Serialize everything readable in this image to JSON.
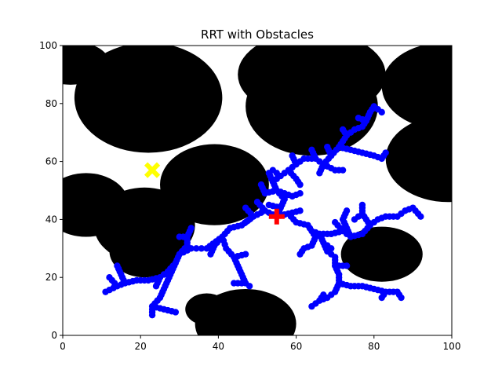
{
  "chart_data": {
    "type": "scatter",
    "title": "RRT with Obstacles",
    "xlabel": "",
    "ylabel": "",
    "xlim": [
      0,
      100
    ],
    "ylim": [
      0,
      100
    ],
    "xticks": [
      "0",
      "20",
      "40",
      "60",
      "80",
      "100"
    ],
    "yticks": [
      "0",
      "20",
      "40",
      "60",
      "80",
      "100"
    ],
    "grid": false,
    "legend": "none",
    "colors": {
      "obstacle": "#000000",
      "tree": "#0000ff",
      "start": "#ff0000",
      "goal": "#ffff00",
      "frame": "#000000"
    },
    "start": {
      "x": 55,
      "y": 41
    },
    "goal": {
      "x": 23,
      "y": 57
    },
    "obstacles": [
      {
        "cx": 2,
        "cy": 94,
        "rx": 10,
        "ry": 7.5
      },
      {
        "cx": 22,
        "cy": 82,
        "rx": 19,
        "ry": 19
      },
      {
        "cx": 64,
        "cy": 79,
        "rx": 17,
        "ry": 17
      },
      {
        "cx": 64,
        "cy": 90,
        "rx": 19,
        "ry": 15
      },
      {
        "cx": 98,
        "cy": 86,
        "rx": 16,
        "ry": 15
      },
      {
        "cx": 99,
        "cy": 61,
        "rx": 16,
        "ry": 15
      },
      {
        "cx": 39,
        "cy": 52,
        "rx": 14,
        "ry": 14
      },
      {
        "cx": 6,
        "cy": 45,
        "rx": 11,
        "ry": 11
      },
      {
        "cx": 21,
        "cy": 38,
        "rx": 13,
        "ry": 13
      },
      {
        "cx": 21,
        "cy": 29,
        "rx": 9,
        "ry": 9
      },
      {
        "cx": 82,
        "cy": 28,
        "rx": 10.5,
        "ry": 9.5
      },
      {
        "cx": 37,
        "cy": 9,
        "rx": 5.5,
        "ry": 5.5
      },
      {
        "cx": 47,
        "cy": 4,
        "rx": 13,
        "ry": 12
      }
    ],
    "tree_edges": [
      [
        [
          55,
          41
        ],
        [
          52,
          43
        ]
      ],
      [
        [
          52,
          43
        ],
        [
          49,
          41
        ]
      ],
      [
        [
          49,
          41
        ],
        [
          46,
          38
        ]
      ],
      [
        [
          46,
          38
        ],
        [
          43,
          37
        ]
      ],
      [
        [
          43,
          37
        ],
        [
          41,
          34
        ]
      ],
      [
        [
          41,
          34
        ],
        [
          37,
          30
        ]
      ],
      [
        [
          37,
          30
        ],
        [
          33,
          30
        ]
      ],
      [
        [
          33,
          30
        ],
        [
          30,
          28
        ]
      ],
      [
        [
          30,
          28
        ],
        [
          29,
          25
        ]
      ],
      [
        [
          29,
          25
        ],
        [
          27,
          22
        ]
      ],
      [
        [
          27,
          22
        ],
        [
          25,
          20
        ]
      ],
      [
        [
          25,
          20
        ],
        [
          22,
          19
        ]
      ],
      [
        [
          22,
          19
        ],
        [
          19,
          19
        ]
      ],
      [
        [
          19,
          19
        ],
        [
          16,
          18
        ]
      ],
      [
        [
          16,
          18
        ],
        [
          14,
          17
        ]
      ],
      [
        [
          16,
          18
        ],
        [
          15,
          21
        ]
      ],
      [
        [
          15,
          21
        ],
        [
          14,
          24
        ]
      ],
      [
        [
          14,
          17
        ],
        [
          12,
          20
        ]
      ],
      [
        [
          14,
          17
        ],
        [
          11,
          15
        ]
      ],
      [
        [
          25,
          20
        ],
        [
          24,
          17
        ]
      ],
      [
        [
          30,
          28
        ],
        [
          32,
          31
        ]
      ],
      [
        [
          32,
          31
        ],
        [
          32,
          34
        ]
      ],
      [
        [
          32,
          34
        ],
        [
          30,
          34
        ]
      ],
      [
        [
          32,
          34
        ],
        [
          33,
          37
        ]
      ],
      [
        [
          29,
          25
        ],
        [
          28,
          22
        ]
      ],
      [
        [
          28,
          22
        ],
        [
          27,
          19
        ]
      ],
      [
        [
          27,
          19
        ],
        [
          26,
          16
        ]
      ],
      [
        [
          26,
          16
        ],
        [
          25,
          13
        ]
      ],
      [
        [
          25,
          13
        ],
        [
          23,
          10
        ]
      ],
      [
        [
          23,
          10
        ],
        [
          23,
          7
        ]
      ],
      [
        [
          23,
          10
        ],
        [
          26,
          9
        ]
      ],
      [
        [
          26,
          9
        ],
        [
          29,
          8
        ]
      ],
      [
        [
          41,
          34
        ],
        [
          42,
          30
        ]
      ],
      [
        [
          42,
          30
        ],
        [
          44,
          27
        ]
      ],
      [
        [
          44,
          27
        ],
        [
          45,
          24
        ]
      ],
      [
        [
          45,
          24
        ],
        [
          46,
          21
        ]
      ],
      [
        [
          46,
          21
        ],
        [
          47,
          18
        ]
      ],
      [
        [
          47,
          18
        ],
        [
          48,
          17
        ]
      ],
      [
        [
          47,
          18
        ],
        [
          44,
          18
        ]
      ],
      [
        [
          44,
          27
        ],
        [
          47,
          28
        ]
      ],
      [
        [
          41,
          34
        ],
        [
          39,
          31
        ]
      ],
      [
        [
          39,
          31
        ],
        [
          38,
          28
        ]
      ],
      [
        [
          46,
          38
        ],
        [
          48,
          40
        ]
      ],
      [
        [
          55,
          41
        ],
        [
          58,
          42
        ]
      ],
      [
        [
          58,
          42
        ],
        [
          61,
          43
        ]
      ],
      [
        [
          55,
          41
        ],
        [
          56,
          44
        ]
      ],
      [
        [
          56,
          44
        ],
        [
          57,
          47
        ]
      ],
      [
        [
          57,
          47
        ],
        [
          55,
          50
        ]
      ],
      [
        [
          55,
          50
        ],
        [
          54,
          53
        ]
      ],
      [
        [
          54,
          53
        ],
        [
          56,
          55
        ]
      ],
      [
        [
          56,
          55
        ],
        [
          58,
          57
        ]
      ],
      [
        [
          58,
          57
        ],
        [
          60,
          59
        ]
      ],
      [
        [
          60,
          59
        ],
        [
          62,
          61
        ]
      ],
      [
        [
          62,
          61
        ],
        [
          65,
          61
        ]
      ],
      [
        [
          65,
          61
        ],
        [
          67,
          59
        ]
      ],
      [
        [
          67,
          59
        ],
        [
          70,
          57
        ]
      ],
      [
        [
          70,
          57
        ],
        [
          72,
          57
        ]
      ],
      [
        [
          67,
          59
        ],
        [
          69,
          62
        ]
      ],
      [
        [
          69,
          62
        ],
        [
          71,
          65
        ]
      ],
      [
        [
          71,
          65
        ],
        [
          72,
          67
        ]
      ],
      [
        [
          72,
          67
        ],
        [
          73,
          69
        ]
      ],
      [
        [
          73,
          69
        ],
        [
          75,
          71
        ]
      ],
      [
        [
          75,
          71
        ],
        [
          77,
          72
        ]
      ],
      [
        [
          77,
          72
        ],
        [
          78,
          74
        ]
      ],
      [
        [
          78,
          74
        ],
        [
          79,
          77
        ]
      ],
      [
        [
          79,
          77
        ],
        [
          80,
          79
        ]
      ],
      [
        [
          80,
          79
        ],
        [
          82,
          77
        ]
      ],
      [
        [
          78,
          74
        ],
        [
          76,
          75
        ]
      ],
      [
        [
          73,
          69
        ],
        [
          72,
          71
        ]
      ],
      [
        [
          71,
          65
        ],
        [
          74,
          64
        ]
      ],
      [
        [
          74,
          64
        ],
        [
          77,
          63
        ]
      ],
      [
        [
          77,
          63
        ],
        [
          80,
          62
        ]
      ],
      [
        [
          80,
          62
        ],
        [
          82,
          61
        ]
      ],
      [
        [
          82,
          61
        ],
        [
          83,
          63
        ]
      ],
      [
        [
          69,
          62
        ],
        [
          68,
          65
        ]
      ],
      [
        [
          67,
          59
        ],
        [
          66,
          56
        ]
      ],
      [
        [
          65,
          61
        ],
        [
          64,
          64
        ]
      ],
      [
        [
          60,
          59
        ],
        [
          59,
          62
        ]
      ],
      [
        [
          56,
          55
        ],
        [
          54,
          57
        ]
      ],
      [
        [
          55,
          50
        ],
        [
          52,
          49
        ]
      ],
      [
        [
          52,
          49
        ],
        [
          51,
          52
        ]
      ],
      [
        [
          54,
          53
        ],
        [
          53,
          56
        ]
      ],
      [
        [
          58,
          57
        ],
        [
          60,
          54
        ]
      ],
      [
        [
          60,
          54
        ],
        [
          61,
          52
        ]
      ],
      [
        [
          55,
          50
        ],
        [
          59,
          48
        ]
      ],
      [
        [
          59,
          48
        ],
        [
          61,
          49
        ]
      ],
      [
        [
          56,
          44
        ],
        [
          53,
          45
        ]
      ],
      [
        [
          58,
          42
        ],
        [
          60,
          39
        ]
      ],
      [
        [
          60,
          39
        ],
        [
          63,
          38
        ]
      ],
      [
        [
          63,
          38
        ],
        [
          64,
          36
        ]
      ],
      [
        [
          64,
          36
        ],
        [
          66,
          35
        ]
      ],
      [
        [
          66,
          35
        ],
        [
          67,
          32
        ]
      ],
      [
        [
          67,
          32
        ],
        [
          68,
          29
        ]
      ],
      [
        [
          68,
          29
        ],
        [
          70,
          27
        ]
      ],
      [
        [
          70,
          27
        ],
        [
          70,
          24
        ]
      ],
      [
        [
          70,
          24
        ],
        [
          71,
          21
        ]
      ],
      [
        [
          71,
          21
        ],
        [
          71,
          18
        ]
      ],
      [
        [
          71,
          18
        ],
        [
          70,
          15
        ]
      ],
      [
        [
          70,
          15
        ],
        [
          68,
          13
        ]
      ],
      [
        [
          68,
          13
        ],
        [
          66,
          12
        ]
      ],
      [
        [
          66,
          12
        ],
        [
          64,
          10
        ]
      ],
      [
        [
          66,
          12
        ],
        [
          67,
          14
        ]
      ],
      [
        [
          71,
          18
        ],
        [
          74,
          17
        ]
      ],
      [
        [
          74,
          17
        ],
        [
          77,
          17
        ]
      ],
      [
        [
          77,
          17
        ],
        [
          80,
          16
        ]
      ],
      [
        [
          80,
          16
        ],
        [
          83,
          15
        ]
      ],
      [
        [
          83,
          15
        ],
        [
          86,
          15
        ]
      ],
      [
        [
          86,
          15
        ],
        [
          87,
          13
        ]
      ],
      [
        [
          83,
          15
        ],
        [
          82,
          13
        ]
      ],
      [
        [
          70,
          24
        ],
        [
          73,
          24
        ]
      ],
      [
        [
          66,
          35
        ],
        [
          69,
          35
        ]
      ],
      [
        [
          69,
          35
        ],
        [
          72,
          36
        ]
      ],
      [
        [
          72,
          36
        ],
        [
          74,
          34
        ]
      ],
      [
        [
          74,
          34
        ],
        [
          77,
          35
        ]
      ],
      [
        [
          77,
          35
        ],
        [
          79,
          38
        ]
      ],
      [
        [
          79,
          38
        ],
        [
          81,
          40
        ]
      ],
      [
        [
          81,
          40
        ],
        [
          83,
          41
        ]
      ],
      [
        [
          83,
          41
        ],
        [
          86,
          41
        ]
      ],
      [
        [
          86,
          41
        ],
        [
          88,
          43
        ]
      ],
      [
        [
          88,
          43
        ],
        [
          90,
          44
        ]
      ],
      [
        [
          90,
          44
        ],
        [
          92,
          41
        ]
      ],
      [
        [
          79,
          38
        ],
        [
          77,
          42
        ]
      ],
      [
        [
          77,
          42
        ],
        [
          77,
          45
        ]
      ],
      [
        [
          77,
          42
        ],
        [
          75,
          40
        ]
      ],
      [
        [
          74,
          34
        ],
        [
          73,
          37
        ]
      ],
      [
        [
          73,
          37
        ],
        [
          72,
          40
        ]
      ],
      [
        [
          72,
          40
        ],
        [
          73,
          43
        ]
      ],
      [
        [
          72,
          36
        ],
        [
          70,
          39
        ]
      ],
      [
        [
          63,
          38
        ],
        [
          65,
          34
        ]
      ],
      [
        [
          65,
          34
        ],
        [
          64,
          31
        ]
      ],
      [
        [
          64,
          31
        ],
        [
          62,
          30
        ]
      ],
      [
        [
          62,
          30
        ],
        [
          61,
          28
        ]
      ],
      [
        [
          67,
          32
        ],
        [
          69,
          30
        ]
      ],
      [
        [
          52,
          43
        ],
        [
          50,
          46
        ]
      ],
      [
        [
          49,
          41
        ],
        [
          47,
          44
        ]
      ]
    ]
  }
}
